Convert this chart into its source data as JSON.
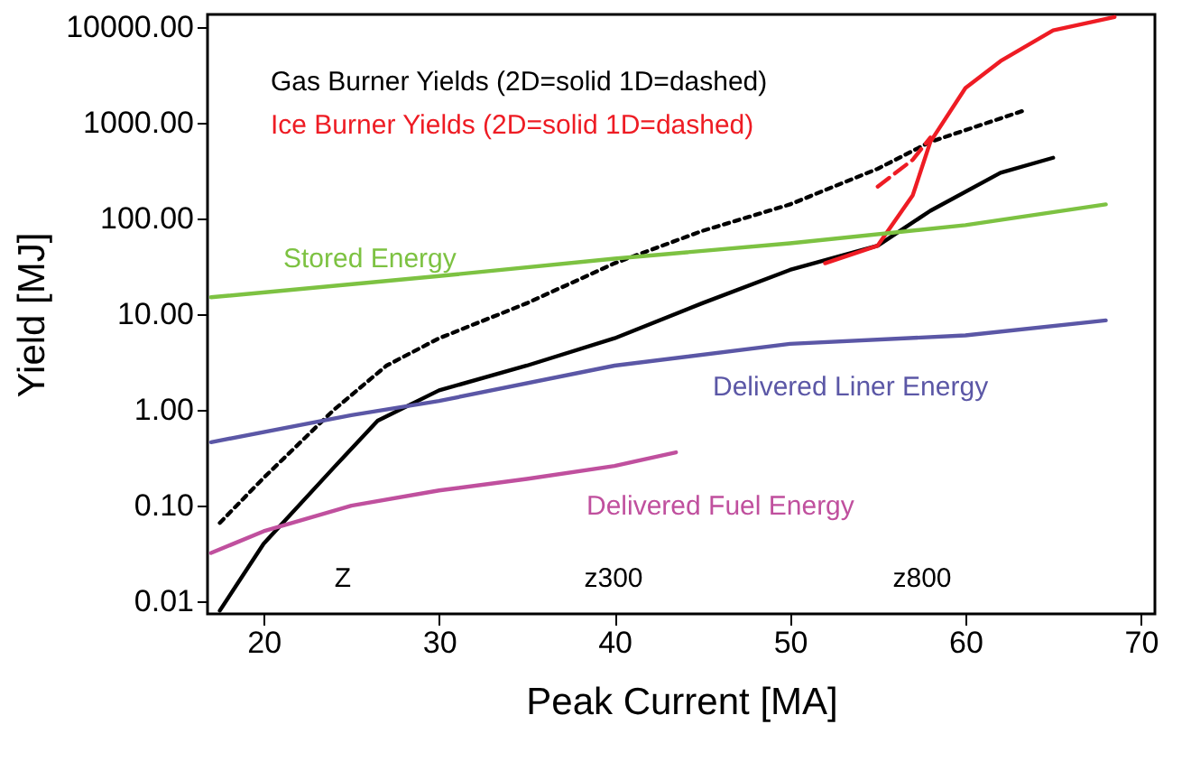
{
  "chart_data": {
    "type": "line",
    "xlabel": "Peak Current [MA]",
    "ylabel": "Yield [MJ]",
    "log": "y",
    "grid": false,
    "marker": "none",
    "xlim": [
      16.8,
      70.8
    ],
    "ylim": [
      0.0074,
      13500
    ],
    "xticks": [
      20,
      30,
      40,
      50,
      60,
      70
    ],
    "yticks": [
      {
        "value": 0.01,
        "label": "0.01"
      },
      {
        "value": 0.1,
        "label": "0.10"
      },
      {
        "value": 1,
        "label": "1.00"
      },
      {
        "value": 10,
        "label": "10.00"
      },
      {
        "value": 100,
        "label": "100.00"
      },
      {
        "value": 1000,
        "label": "1000.00"
      },
      {
        "value": 10000,
        "label": "10000.00"
      }
    ],
    "series": [
      {
        "name": "Gas Burner Yields (2D=solid 1D=dashed)",
        "color": "#000000",
        "line_style": "solid",
        "x": [
          17.5,
          20,
          24,
          26.5,
          30,
          35,
          40,
          45,
          50,
          55,
          58,
          62,
          65
        ],
        "values": [
          0.008,
          0.04,
          0.25,
          0.77,
          1.6,
          2.9,
          5.6,
          13,
          29,
          52,
          120,
          300,
          430
        ]
      },
      {
        "color": "#000000",
        "line_style": "dotted",
        "x": [
          17.5,
          20,
          24,
          27,
          30,
          35,
          40,
          45,
          50,
          55,
          58,
          63.5
        ],
        "values": [
          0.066,
          0.195,
          1.0,
          2.9,
          5.6,
          13,
          34,
          74,
          140,
          330,
          630,
          1370
        ]
      },
      {
        "name": "Ice Burner Yields (2D=solid 1D=dashed)",
        "color": "#ee1c24",
        "line_style": "solid",
        "x": [
          52,
          55,
          57,
          58,
          60,
          62,
          65,
          68.5
        ],
        "values": [
          34,
          52,
          175,
          630,
          2300,
          4400,
          9200,
          12700
        ]
      },
      {
        "color": "#ee1c24",
        "line_style": "dashed",
        "x": [
          55,
          57,
          58
        ],
        "values": [
          215,
          410,
          700
        ]
      },
      {
        "name": "Stored Energy",
        "color": "#7dc242",
        "line_style": "solid",
        "x": [
          17,
          30,
          40,
          50,
          60,
          68
        ],
        "values": [
          15,
          25,
          38,
          55,
          85,
          140
        ]
      },
      {
        "name": "Delivered Liner Energy",
        "color": "#5b57a6",
        "line_style": "solid",
        "x": [
          17,
          25,
          30,
          40,
          50,
          60,
          68
        ],
        "values": [
          0.46,
          0.88,
          1.24,
          2.9,
          4.9,
          6,
          8.6
        ]
      },
      {
        "name": "Delivered Fuel Energy",
        "color": "#c0509e",
        "line_style": "solid",
        "x": [
          17,
          20,
          25,
          30,
          35,
          40,
          43.5
        ],
        "values": [
          0.032,
          0.054,
          0.1,
          0.144,
          0.19,
          0.26,
          0.36
        ]
      }
    ],
    "annotations": [
      "Z",
      "z300",
      "z800"
    ]
  }
}
